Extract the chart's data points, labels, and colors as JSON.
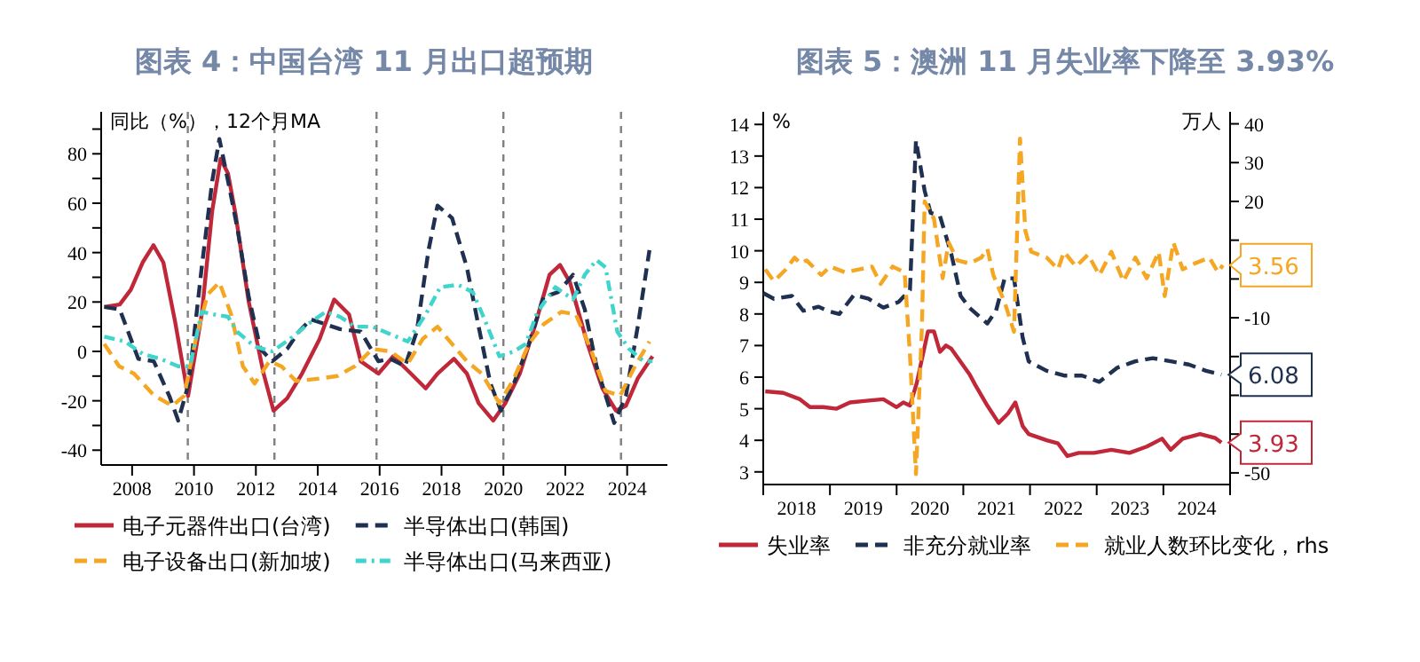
{
  "chart_data": [
    {
      "type": "line",
      "title": "图表 4：中国台湾 11 月出口超预期",
      "ylabel": "同比（%），12个月MA",
      "xlim": [
        2007,
        2025.3
      ],
      "xticks": [
        2008,
        2010,
        2012,
        2014,
        2016,
        2018,
        2020,
        2022,
        2024
      ],
      "ylim": [
        -46,
        97
      ],
      "yticks": [
        -40,
        {
          "value": -30,
          "label": null
        },
        -20,
        {
          "value": -10,
          "label": null
        },
        0,
        {
          "value": 10,
          "label": null
        },
        20,
        {
          "value": 30,
          "label": null
        },
        40,
        {
          "value": 50,
          "label": null
        },
        60,
        {
          "value": 70,
          "label": null
        },
        80,
        {
          "value": 90,
          "label": null
        }
      ],
      "legend": "bottom",
      "ref_lines": [
        {
          "axis": "x",
          "value": 2009.8,
          "color": "#808080",
          "line_style": "dashed"
        },
        {
          "axis": "x",
          "value": 2012.6,
          "color": "#808080",
          "line_style": "dashed"
        },
        {
          "axis": "x",
          "value": 2015.9,
          "color": "#808080",
          "line_style": "dashed"
        },
        {
          "axis": "x",
          "value": 2020.0,
          "color": "#808080",
          "line_style": "dashed"
        },
        {
          "axis": "x",
          "value": 2023.8,
          "color": "#808080",
          "line_style": "dashed"
        }
      ],
      "series": [
        {
          "name": "电子元器件出口(台湾)",
          "color": "#c0283a",
          "line_style": "solid",
          "x": [
            2007.1,
            2007.6,
            2007.96,
            2008.34,
            2008.69,
            2009.01,
            2009.39,
            2009.81,
            2010.25,
            2010.59,
            2010.86,
            2011.1,
            2011.35,
            2011.77,
            2012.25,
            2012.57,
            2013.01,
            2013.49,
            2014.06,
            2014.53,
            2015.01,
            2015.39,
            2015.96,
            2016.44,
            2017.01,
            2017.49,
            2017.87,
            2018.4,
            2018.82,
            2019.2,
            2019.67,
            2020.06,
            2020.53,
            2021.01,
            2021.49,
            2021.83,
            2022.15,
            2022.72,
            2023.2,
            2023.64,
            2023.96,
            2024.34,
            2024.82
          ],
          "values": [
            18,
            19,
            25,
            36,
            43,
            36,
            12,
            -18,
            15,
            57,
            78,
            72,
            55,
            20,
            -9,
            -24,
            -19,
            -9,
            5,
            21,
            15,
            -4,
            -9,
            -2,
            -9,
            -15,
            -9,
            -3,
            -9,
            -21,
            -28,
            -21,
            -9,
            10,
            31,
            35,
            28,
            3,
            -15,
            -24,
            -22,
            -11,
            -2
          ]
        },
        {
          "name": "半导体出口(韩国)",
          "color": "#1f3050",
          "line_style": "dashed",
          "x": [
            2007.1,
            2007.6,
            2008.2,
            2008.7,
            2009.2,
            2009.49,
            2009.83,
            2010.25,
            2010.59,
            2010.82,
            2011.1,
            2011.4,
            2011.77,
            2012.15,
            2012.53,
            2013.01,
            2013.39,
            2013.77,
            2014.25,
            2014.72,
            2015.39,
            2015.96,
            2016.34,
            2016.82,
            2017.2,
            2017.58,
            2017.87,
            2018.34,
            2018.82,
            2019.2,
            2019.58,
            2019.92,
            2020.34,
            2020.82,
            2021.3,
            2021.77,
            2022.25,
            2022.63,
            2023.01,
            2023.58,
            2023.96,
            2024.34,
            2024.72
          ],
          "values": [
            18,
            17,
            -3,
            -4,
            -18,
            -28,
            -13,
            34,
            69,
            86,
            69,
            50,
            22,
            1,
            -4,
            1,
            8,
            13,
            11,
            9,
            8,
            -4,
            -3,
            -6,
            8,
            41,
            59,
            54,
            34,
            10,
            -13,
            -24,
            -13,
            3,
            22,
            24,
            31,
            17,
            -6,
            -29,
            -18,
            10,
            41
          ]
        },
        {
          "name": "电子设备出口(新加坡)",
          "color": "#f5a623",
          "line_style": "dashed",
          "x": [
            2007.1,
            2007.58,
            2008.06,
            2008.72,
            2009.3,
            2009.68,
            2010.06,
            2010.44,
            2010.82,
            2011.2,
            2011.58,
            2011.96,
            2012.44,
            2012.82,
            2013.3,
            2014.06,
            2014.63,
            2015.2,
            2015.77,
            2016.34,
            2016.91,
            2017.39,
            2017.87,
            2018.34,
            2018.82,
            2019.3,
            2019.87,
            2020.34,
            2020.82,
            2021.3,
            2021.87,
            2022.34,
            2022.82,
            2023.3,
            2023.77,
            2024.25,
            2024.72
          ],
          "values": [
            3,
            -6,
            -9,
            -18,
            -22,
            -18,
            5,
            23,
            28,
            15,
            -6,
            -13,
            -4,
            -6,
            -12,
            -11,
            -10,
            -6,
            1,
            0,
            -5,
            5,
            10,
            3,
            -4,
            -9,
            -21,
            -11,
            3,
            11,
            16,
            15,
            1,
            -16,
            -18,
            -6,
            4
          ]
        },
        {
          "name": "半导体出口(马来西亚)",
          "color": "#3fd4cc",
          "line_style": "dotted",
          "x": [
            2007.1,
            2007.77,
            2008.34,
            2008.91,
            2009.49,
            2009.87,
            2010.25,
            2010.63,
            2011.1,
            2011.39,
            2011.96,
            2012.53,
            2013.1,
            2013.68,
            2014.25,
            2014.72,
            2015.2,
            2015.77,
            2016.34,
            2016.91,
            2017.49,
            2017.96,
            2018.53,
            2019.01,
            2019.39,
            2019.87,
            2020.34,
            2020.72,
            2021.1,
            2021.68,
            2022.25,
            2022.63,
            2023.01,
            2023.3,
            2023.68,
            2024.06,
            2024.53,
            2024.82
          ],
          "values": [
            6,
            4,
            -1,
            -3,
            -6,
            -6,
            16,
            15,
            14,
            8,
            2,
            0,
            5,
            11,
            16,
            14,
            10,
            10,
            7,
            4,
            15,
            26,
            27,
            24,
            13,
            -2,
            0,
            3,
            16,
            26,
            21,
            31,
            37,
            34,
            8,
            1,
            -4,
            -4
          ]
        }
      ]
    },
    {
      "type": "line",
      "title": "图表 5：澳洲 11 月失业率下降至 3.93%",
      "ylabel": "%",
      "y2label": "万人",
      "xlim": [
        2018,
        2025
      ],
      "xticks": [
        {
          "value": 2018,
          "label": null
        },
        {
          "value": 2018.5,
          "label": "2018"
        },
        {
          "value": 2019,
          "label": null
        },
        {
          "value": 2019.5,
          "label": "2019"
        },
        {
          "value": 2020,
          "label": null
        },
        {
          "value": 2020.5,
          "label": "2020"
        },
        {
          "value": 2021,
          "label": null
        },
        {
          "value": 2021.5,
          "label": "2021"
        },
        {
          "value": 2022,
          "label": null
        },
        {
          "value": 2022.5,
          "label": "2022"
        },
        {
          "value": 2023,
          "label": null
        },
        {
          "value": 2023.5,
          "label": "2023"
        },
        {
          "value": 2024,
          "label": null
        },
        {
          "value": 2024.5,
          "label": "2024"
        },
        {
          "value": 2025,
          "label": null
        }
      ],
      "ylim": [
        2.6,
        14.4
      ],
      "yticks": [
        3,
        4,
        5,
        6,
        7,
        8,
        9,
        10,
        11,
        12,
        13,
        14
      ],
      "y2lim": [
        -53,
        43.1
      ],
      "y2ticks": [
        -50,
        {
          "value": -40,
          "label": null
        },
        {
          "value": -30,
          "label": null
        },
        {
          "value": -20,
          "label": null
        },
        -10,
        {
          "value": 0,
          "label": null
        },
        {
          "value": 10,
          "label": null
        },
        20,
        30,
        40
      ],
      "legend": "bottom",
      "series": [
        {
          "name": "失业率",
          "color": "#c0283a",
          "line_style": "solid",
          "x": [
            2018.03,
            2018.3,
            2018.55,
            2018.7,
            2018.9,
            2019.1,
            2019.3,
            2019.55,
            2019.8,
            2020.0,
            2020.1,
            2020.2,
            2020.3,
            2020.47,
            2020.56,
            2020.65,
            2020.74,
            2020.82,
            2021.09,
            2021.18,
            2021.36,
            2021.53,
            2021.67,
            2021.78,
            2021.89,
            2021.98,
            2022.25,
            2022.42,
            2022.56,
            2022.73,
            2022.96,
            2023.22,
            2023.49,
            2023.75,
            2023.98,
            2024.11,
            2024.29,
            2024.55,
            2024.78,
            2024.87
          ],
          "values": [
            5.55,
            5.5,
            5.3,
            5.05,
            5.05,
            5.0,
            5.2,
            5.25,
            5.3,
            5.05,
            5.2,
            5.1,
            5.8,
            7.45,
            7.45,
            6.8,
            7.0,
            6.9,
            6.1,
            5.75,
            5.1,
            4.55,
            4.85,
            5.2,
            4.45,
            4.2,
            4.0,
            3.9,
            3.5,
            3.6,
            3.6,
            3.7,
            3.6,
            3.8,
            4.05,
            3.7,
            4.05,
            4.2,
            4.07,
            3.93
          ],
          "value_labels": [
            null,
            null,
            null,
            null,
            null,
            null,
            null,
            null,
            null,
            null,
            null,
            null,
            null,
            null,
            null,
            null,
            null,
            null,
            null,
            null,
            null,
            null,
            null,
            null,
            null,
            null,
            null,
            null,
            null,
            null,
            null,
            null,
            null,
            null,
            null,
            null,
            null,
            null,
            null,
            "3.93"
          ]
        },
        {
          "name": "非充分就业率",
          "color": "#1f3050",
          "line_style": "dashed",
          "x": [
            2018.0,
            2018.16,
            2018.43,
            2018.6,
            2018.83,
            2018.96,
            2019.14,
            2019.36,
            2019.58,
            2019.8,
            2020.03,
            2020.2,
            2020.29,
            2020.42,
            2020.51,
            2020.65,
            2020.82,
            2020.96,
            2021.09,
            2021.36,
            2021.49,
            2021.62,
            2021.76,
            2021.89,
            2021.98,
            2022.25,
            2022.51,
            2022.78,
            2023.04,
            2023.31,
            2023.58,
            2023.84,
            2024.11,
            2024.38,
            2024.64,
            2024.87
          ],
          "values": [
            8.66,
            8.48,
            8.57,
            8.1,
            8.23,
            8.1,
            8.0,
            8.6,
            8.48,
            8.2,
            8.38,
            8.76,
            13.5,
            11.9,
            11.2,
            11.1,
            9.9,
            8.57,
            8.2,
            7.7,
            8.1,
            9.13,
            9.13,
            7.25,
            6.5,
            6.2,
            6.05,
            6.05,
            5.85,
            6.3,
            6.5,
            6.6,
            6.5,
            6.4,
            6.2,
            6.08
          ],
          "value_labels": [
            null,
            null,
            null,
            null,
            null,
            null,
            null,
            null,
            null,
            null,
            null,
            null,
            null,
            null,
            null,
            null,
            null,
            null,
            null,
            null,
            null,
            null,
            null,
            null,
            null,
            null,
            null,
            null,
            null,
            null,
            null,
            null,
            null,
            null,
            null,
            "6.08"
          ]
        },
        {
          "name": "就业人数环比变化，rhs",
          "color": "#f5a623",
          "line_style": "dashed",
          "axis": "y2",
          "x": [
            2018.03,
            2018.16,
            2018.34,
            2018.47,
            2018.56,
            2018.65,
            2018.87,
            2019.0,
            2019.23,
            2019.45,
            2019.63,
            2019.76,
            2019.94,
            2020.12,
            2020.2,
            2020.29,
            2020.38,
            2020.42,
            2020.56,
            2020.69,
            2020.78,
            2020.91,
            2021.09,
            2021.27,
            2021.36,
            2021.45,
            2021.62,
            2021.76,
            2021.85,
            2021.93,
            2022.02,
            2022.25,
            2022.42,
            2022.51,
            2022.69,
            2022.87,
            2023.04,
            2023.22,
            2023.4,
            2023.58,
            2023.75,
            2023.93,
            2024.02,
            2024.15,
            2024.29,
            2024.47,
            2024.69,
            2024.82,
            2024.89
          ],
          "values": [
            2.5,
            -0.6,
            2.5,
            5.5,
            4,
            4.8,
            1,
            3.2,
            1.7,
            2.5,
            3.2,
            -1.3,
            3.2,
            1.7,
            -19.7,
            -50.3,
            -12,
            20,
            15.5,
            0.2,
            9.4,
            4.8,
            4,
            5.5,
            7.8,
            1,
            -6,
            -13.6,
            36.2,
            12.4,
            7,
            5.5,
            2.5,
            7,
            3.2,
            6.3,
            1,
            7,
            -0.6,
            5.5,
            0.2,
            7,
            -4.4,
            9.4,
            2.5,
            4,
            5.5,
            1.7,
            3.56
          ],
          "value_labels": [
            null,
            null,
            null,
            null,
            null,
            null,
            null,
            null,
            null,
            null,
            null,
            null,
            null,
            null,
            null,
            null,
            null,
            null,
            null,
            null,
            null,
            null,
            null,
            null,
            null,
            null,
            null,
            null,
            null,
            null,
            null,
            null,
            null,
            null,
            null,
            null,
            null,
            null,
            null,
            null,
            null,
            null,
            null,
            null,
            null,
            null,
            null,
            null,
            "3.56"
          ]
        }
      ]
    }
  ]
}
